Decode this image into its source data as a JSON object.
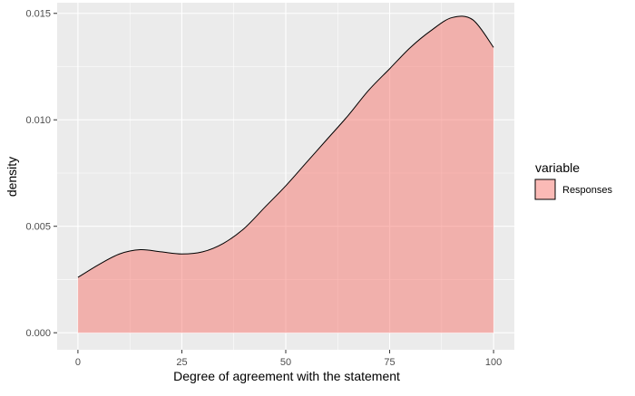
{
  "chart_data": {
    "type": "area",
    "subtype": "density",
    "xlabel": "Degree of agreement with the statement",
    "ylabel": "density",
    "xlim": [
      -5,
      105
    ],
    "ylim": [
      -0.0008,
      0.0155
    ],
    "x_ticks": [
      0,
      25,
      50,
      75,
      100
    ],
    "x_tick_labels": [
      "0",
      "25",
      "50",
      "75",
      "100"
    ],
    "y_ticks": [
      0.0,
      0.005,
      0.01,
      0.015
    ],
    "y_tick_labels": [
      "0.000",
      "0.005",
      "0.010",
      "0.015"
    ],
    "grid": true,
    "legend": {
      "title": "variable",
      "position": "right"
    },
    "series": [
      {
        "name": "Responses",
        "color": "#F8766D",
        "fill_alpha": 0.5,
        "x": [
          0,
          5,
          10,
          15,
          20,
          25,
          30,
          35,
          40,
          45,
          50,
          55,
          60,
          65,
          70,
          75,
          80,
          85,
          90,
          95,
          100
        ],
        "y": [
          0.0026,
          0.0032,
          0.0037,
          0.0039,
          0.0038,
          0.0037,
          0.0038,
          0.0042,
          0.0049,
          0.0059,
          0.0069,
          0.008,
          0.0091,
          0.0102,
          0.0114,
          0.0124,
          0.0134,
          0.0142,
          0.0148,
          0.0147,
          0.0134
        ]
      }
    ]
  },
  "colors": {
    "panel_background": "#EBEBEB",
    "grid_major": "#FFFFFF",
    "series_fill": "#F8766D",
    "outline": "#000000"
  }
}
